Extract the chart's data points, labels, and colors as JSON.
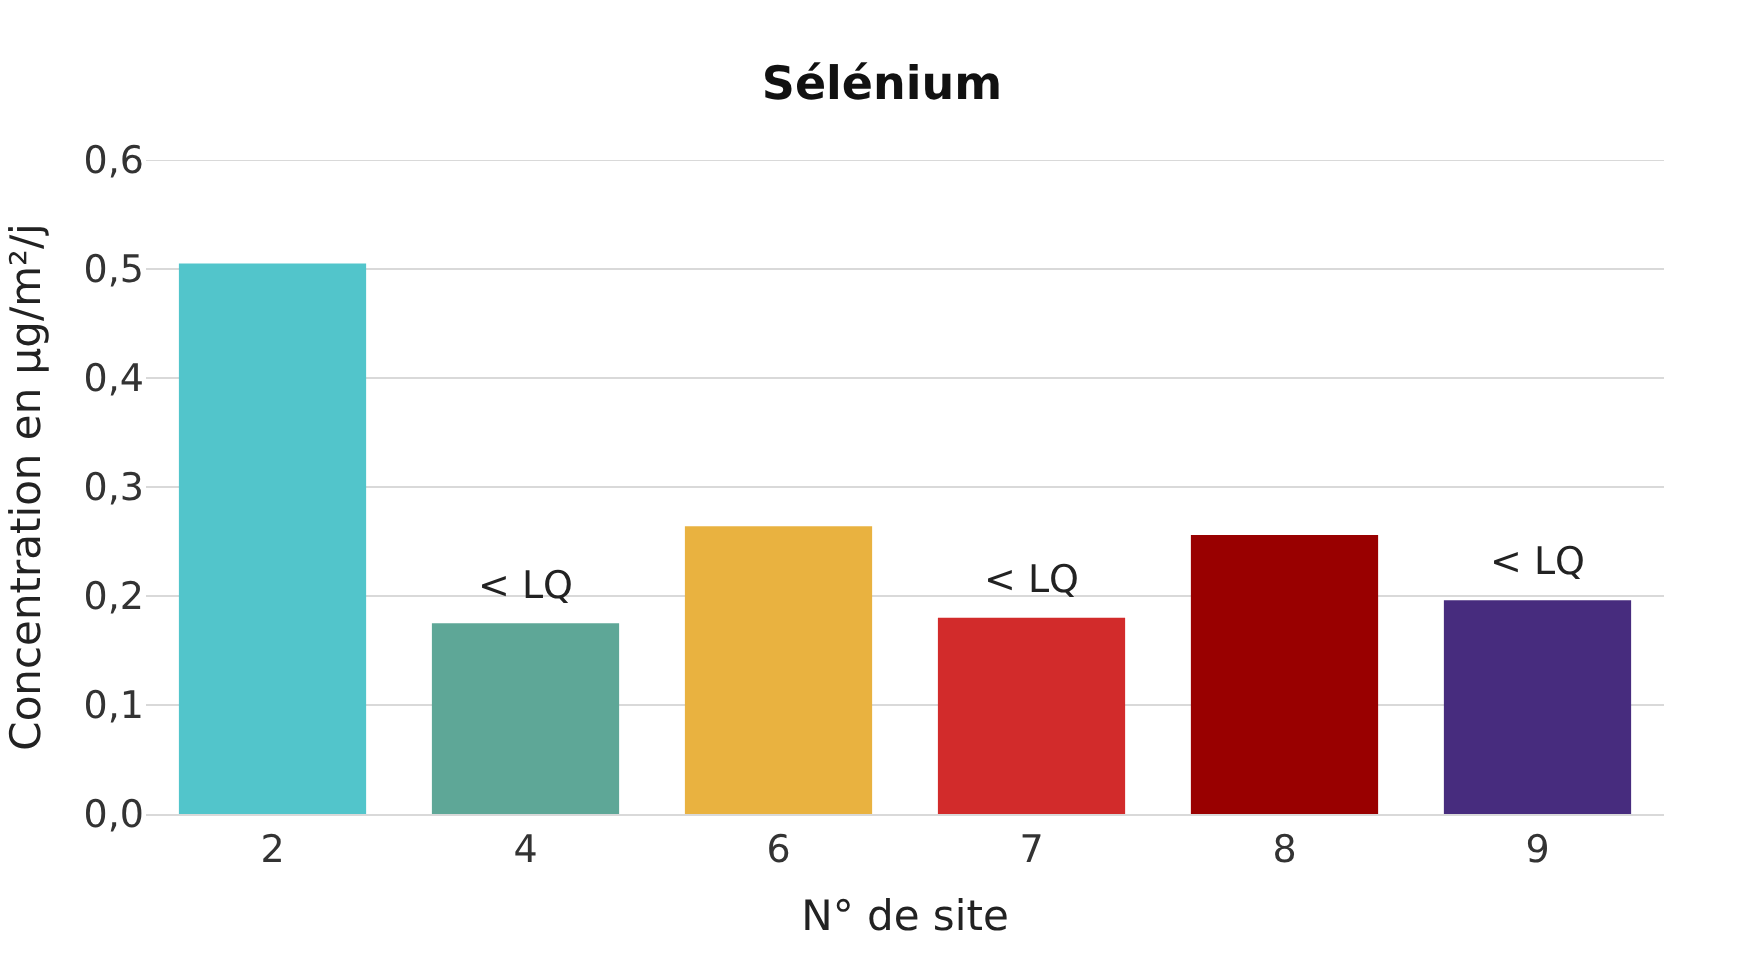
{
  "chart_data": {
    "type": "bar",
    "title": "Sélénium",
    "xlabel": "N° de site",
    "ylabel": "Concentration en µg/m²/j",
    "categories": [
      "2",
      "4",
      "6",
      "7",
      "8",
      "9"
    ],
    "values": [
      0.505,
      0.175,
      0.264,
      0.18,
      0.256,
      0.196
    ],
    "colors": [
      "#52c5cb",
      "#5ea797",
      "#e9b240",
      "#d22b2b",
      "#990000",
      "#472c7e"
    ],
    "ylim": [
      0,
      0.6
    ],
    "yticks": [
      {
        "value": 0,
        "label": "0,0"
      },
      {
        "value": 0.1,
        "label": "0,1"
      },
      {
        "value": 0.2,
        "label": "0,2"
      },
      {
        "value": 0.3,
        "label": "0,3"
      },
      {
        "value": 0.4,
        "label": "0,4"
      },
      {
        "value": 0.5,
        "label": "0,5"
      },
      {
        "value": 0.6,
        "label": "0,6"
      }
    ],
    "grid": "y",
    "annotations": [
      {
        "text": "< LQ",
        "x": "4",
        "y": 0.175
      },
      {
        "text": "< LQ",
        "x": "7",
        "y": 0.18
      },
      {
        "text": "< LQ",
        "x": "9",
        "y": 0.196
      }
    ]
  }
}
